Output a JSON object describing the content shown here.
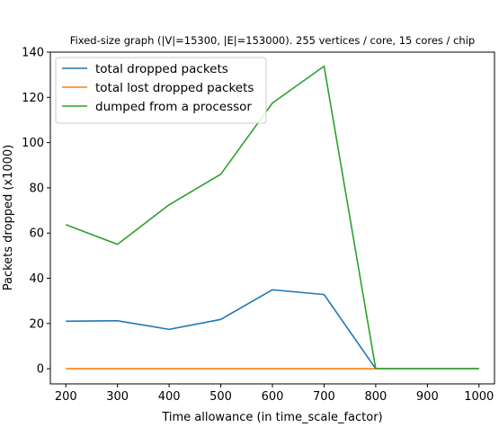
{
  "chart_data": {
    "type": "line",
    "title": "Fixed-size graph (|V|=15300, |E|=153000). 255 vertices / core, 15 cores / chip",
    "xlabel": "Time allowance (in time_scale_factor)",
    "ylabel": "Packets dropped (x1000)",
    "x": [
      200,
      300,
      400,
      500,
      600,
      700,
      800,
      900,
      1000
    ],
    "xlim": [
      170,
      1030
    ],
    "ylim": [
      -6.7,
      140
    ],
    "xticks": [
      200,
      300,
      400,
      500,
      600,
      700,
      800,
      900,
      1000
    ],
    "yticks": [
      0,
      20,
      40,
      60,
      80,
      100,
      120,
      140
    ],
    "grid": false,
    "legend_position": "upper-left",
    "series": [
      {
        "name": "total dropped packets",
        "color": "#1f77b4",
        "values": [
          21.0,
          21.2,
          17.4,
          21.8,
          34.9,
          32.8,
          0,
          0,
          0
        ]
      },
      {
        "name": "total lost dropped packets",
        "color": "#ff7f0e",
        "values": [
          0,
          0,
          0,
          0,
          0,
          0,
          0,
          0,
          0
        ]
      },
      {
        "name": "dumped from a processor",
        "color": "#2ca02c",
        "values": [
          63.7,
          55.0,
          72.5,
          86.0,
          117.5,
          133.8,
          0,
          0,
          0
        ]
      }
    ]
  }
}
